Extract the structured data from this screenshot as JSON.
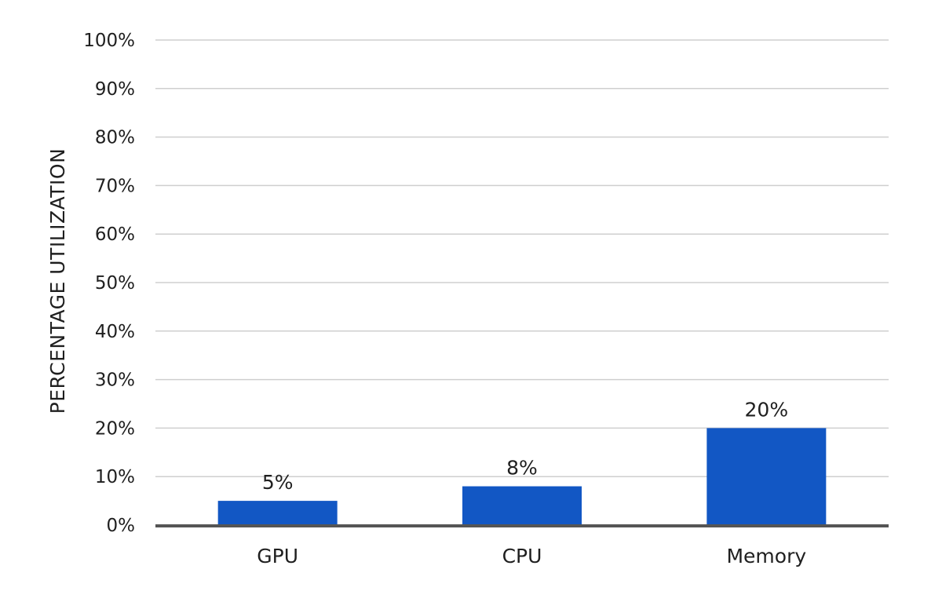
{
  "chart_data": {
    "type": "bar",
    "title": "",
    "xlabel": "",
    "ylabel": "PERCENTAGE UTILIZATION",
    "categories": [
      "GPU",
      "CPU",
      "Memory"
    ],
    "values": [
      5,
      8,
      20
    ],
    "value_labels": [
      "5%",
      "8%",
      "20%"
    ],
    "ylim": [
      0,
      100
    ],
    "y_ticks": [
      0,
      10,
      20,
      30,
      40,
      50,
      60,
      70,
      80,
      90,
      100
    ],
    "y_tick_labels": [
      "0%",
      "10%",
      "20%",
      "30%",
      "40%",
      "50%",
      "60%",
      "70%",
      "80%",
      "90%",
      "100%"
    ],
    "grid": true,
    "legend": "none",
    "colors": {
      "bar": "#1257c4",
      "gridline": "#cfcfcf",
      "baseline": "#555555",
      "text": "#1f1f1f"
    }
  }
}
